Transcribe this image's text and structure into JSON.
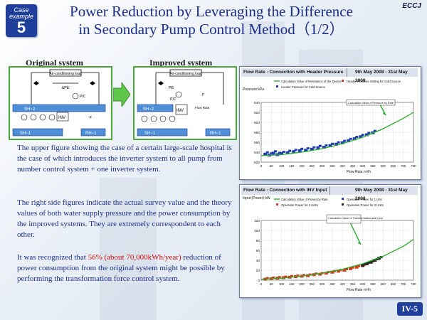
{
  "header": {
    "case_label": "Case example",
    "case_number": "5",
    "title_line1": "Power Reduction by Leveraging the Difference",
    "title_line2": "in Secondary Pump Control Method（1/2）",
    "org": "ECCJ"
  },
  "systems": {
    "original": {
      "label": "Original system",
      "load": "Air-conditioning load",
      "dp": "ΔPE",
      "pic": "PIC",
      "inv": "INV",
      "f": "F",
      "sh2": "SH−2",
      "sh1": "SH−1",
      "rh1": "RH−1"
    },
    "improved": {
      "label": "Improved system",
      "load": "Air-conditioning load",
      "dp": "PE",
      "pic": "PIC",
      "inv": "INV",
      "f": "F",
      "flow_rate": "Flow Rate",
      "sh2": "SH−2",
      "sh1": "SH−1",
      "rh1": "RH−1"
    }
  },
  "text": {
    "para1": "The upper figure showing the case of a certain large-scale hospital is the case of which introduces the inverter system to all pump from number control system + one inverter system.",
    "para2": "The right side figures indicate the actual survey value and the theory values of both water supply pressure and the power consumption by the improved systems. They are extremely correspondent to each other.",
    "para3_pre": "It was recognized that ",
    "para3_hl": "56% (about 70,000kWh/year)",
    "para3_post": " reduction of power consumption from the original system might be possible by performing the transformation force control system."
  },
  "page_number": "IV-5",
  "colors": {
    "navy": "#1a2e8a",
    "green": "#4aa83a",
    "red": "#d01010",
    "badge": "#1f3f9a"
  },
  "chart_data": [
    {
      "type": "scatter",
      "title": "Flow Rate - Connection with Header Pressure",
      "date_range": "9th May 2008 - 31st May 2008",
      "ylabel": "Pressure kPa",
      "xlabel": "Flow Rate m³/h",
      "xlim": [
        0,
        750
      ],
      "ylim": [
        520,
        640
      ],
      "xticks": [
        0,
        50,
        100,
        150,
        200,
        250,
        300,
        350,
        400,
        450,
        500,
        550,
        600,
        650,
        700,
        750
      ],
      "yticks": [
        520,
        540,
        560,
        580,
        600,
        620,
        640
      ],
      "grid": true,
      "legend": {
        "curve": "Calculation Value of Resistance of the Device",
        "setting": "Header Pressure Setting for Cold Source",
        "actual": "Header Pressure for Cold Source"
      },
      "annotation": "Calculation Value of Pressure by Rate",
      "series": [
        {
          "name": "Calculation Value of Resistance of the Device",
          "x": [
            0,
            100,
            200,
            300,
            400,
            500,
            600,
            700,
            750
          ],
          "y": [
            533,
            535,
            540,
            547,
            557,
            570,
            587,
            608,
            620
          ]
        },
        {
          "name": "Header Pressure for Cold Source",
          "x": [
            20,
            40,
            60,
            80,
            100,
            130,
            160,
            190,
            220,
            250,
            280,
            310,
            340,
            370,
            400,
            430,
            460,
            490,
            520,
            550
          ],
          "y": [
            536,
            534,
            538,
            535,
            537,
            539,
            541,
            543,
            544,
            546,
            549,
            550,
            553,
            556,
            559,
            563,
            567,
            571,
            575,
            579
          ]
        }
      ]
    },
    {
      "type": "scatter",
      "title": "Flow Rate - Connection with INV Input",
      "date_range": "9th May 2008 - 31st May 2008",
      "ylabel": "Input (Power) kW",
      "xlabel": "Flow Rate m³/h",
      "xlim": [
        0,
        750
      ],
      "ylim": [
        0,
        120
      ],
      "xticks": [
        0,
        50,
        100,
        150,
        200,
        250,
        300,
        350,
        400,
        450,
        500,
        550,
        600,
        650,
        700,
        750
      ],
      "yticks": [
        0,
        20,
        40,
        60,
        80,
        100,
        120
      ],
      "grid": true,
      "legend": {
        "curve": "Calculation Value of Power by Rate",
        "op1": "Operation Power for 1 Unit",
        "op2": "Operation Power for 2 Units",
        "op3": "Operation Power for 3 Units"
      },
      "annotation": "Calculation Value of Transformation and Input",
      "series": [
        {
          "name": "Calculation Value of Power by Rate",
          "x": [
            0,
            100,
            200,
            300,
            400,
            500,
            600,
            700,
            750
          ],
          "y": [
            2,
            4,
            8,
            14,
            22,
            33,
            48,
            68,
            82
          ]
        },
        {
          "name": "Operation Power for 2 Units",
          "x": [
            20,
            50,
            80,
            110,
            140,
            170,
            200,
            230,
            260,
            290,
            320,
            350,
            380,
            410,
            440,
            470,
            500
          ],
          "y": [
            2,
            3,
            4,
            5,
            6,
            7,
            8,
            9,
            11,
            12,
            14,
            16,
            18,
            20,
            23,
            26,
            29
          ]
        },
        {
          "name": "Operation Power for 3 Units",
          "x": [
            500,
            520,
            540,
            560,
            580
          ],
          "y": [
            30,
            33,
            36,
            40,
            44
          ]
        }
      ]
    }
  ]
}
